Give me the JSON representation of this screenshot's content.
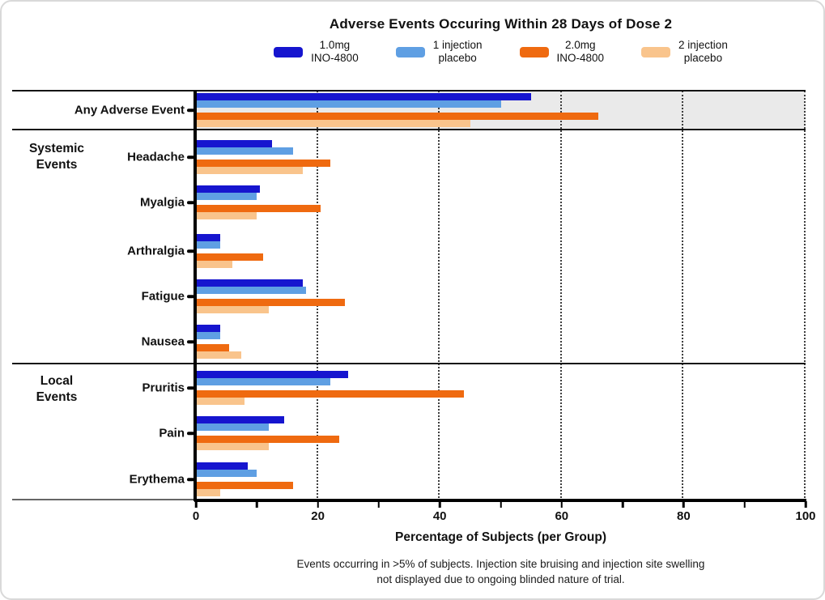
{
  "figure": {
    "title": "Adverse Events Occuring Within 28 Days of Dose 2",
    "x_axis_title": "Percentage of Subjects (per Group)",
    "footnote_line1": "Events occurring in >5% of subjects. Injection site bruising and injection site swelling",
    "footnote_line2": "not displayed due to ongoing blinded nature of trial."
  },
  "legend": {
    "items": [
      {
        "line1": "1.0mg",
        "line2": "INO-4800",
        "color": "#1615CF"
      },
      {
        "line1": "1 injection",
        "line2": "placebo",
        "color": "#5F9FE3"
      },
      {
        "line1": "2.0mg",
        "line2": "INO-4800",
        "color": "#EF6A10"
      },
      {
        "line1": "2 injection",
        "line2": "placebo",
        "color": "#F9C48C"
      }
    ]
  },
  "chart_data": {
    "type": "bar",
    "orientation": "horizontal",
    "title": "Adverse Events Occuring Within 28 Days of Dose 2",
    "xlabel": "Percentage of Subjects (per Group)",
    "xlim": [
      0,
      100
    ],
    "x_major_ticks": [
      0,
      20,
      40,
      60,
      80,
      100
    ],
    "x_minor_tick_step": 10,
    "grid": "vertical dotted lines at 20, 40, 60, 80, 100",
    "legend_position": "top",
    "categories": [
      "Any Adverse Event",
      "Headache",
      "Myalgia",
      "Arthralgia",
      "Fatigue",
      "Nausea",
      "Pruritis",
      "Pain",
      "Erythema"
    ],
    "sections": [
      {
        "label_line1": "",
        "label_line2": "",
        "categories": [
          "Any Adverse Event"
        ]
      },
      {
        "label_line1": "Systemic",
        "label_line2": "Events",
        "categories": [
          "Headache",
          "Myalgia",
          "Arthralgia",
          "Fatigue",
          "Nausea"
        ]
      },
      {
        "label_line1": "Local",
        "label_line2": "Events",
        "categories": [
          "Pruritis",
          "Pain",
          "Erythema"
        ]
      }
    ],
    "series": [
      {
        "name": "1.0mg INO-4800",
        "color": "#1615CF",
        "values": [
          55,
          12.5,
          10.5,
          4,
          17.5,
          4,
          25,
          14.5,
          8.5
        ]
      },
      {
        "name": "1 injection placebo",
        "color": "#5F9FE3",
        "values": [
          50,
          16,
          10,
          4,
          18,
          4,
          22,
          12,
          10
        ]
      },
      {
        "name": "2.0mg INO-4800",
        "color": "#EF6A10",
        "values": [
          66,
          22,
          20.5,
          11,
          24.5,
          5.5,
          44,
          23.5,
          16
        ]
      },
      {
        "name": "2 injection placebo",
        "color": "#F9C48C",
        "values": [
          45,
          17.5,
          10,
          6,
          12,
          7.5,
          8,
          12,
          4
        ]
      }
    ],
    "highlight_row": {
      "category": "Any Adverse Event",
      "background": "#EAEAEA"
    }
  }
}
